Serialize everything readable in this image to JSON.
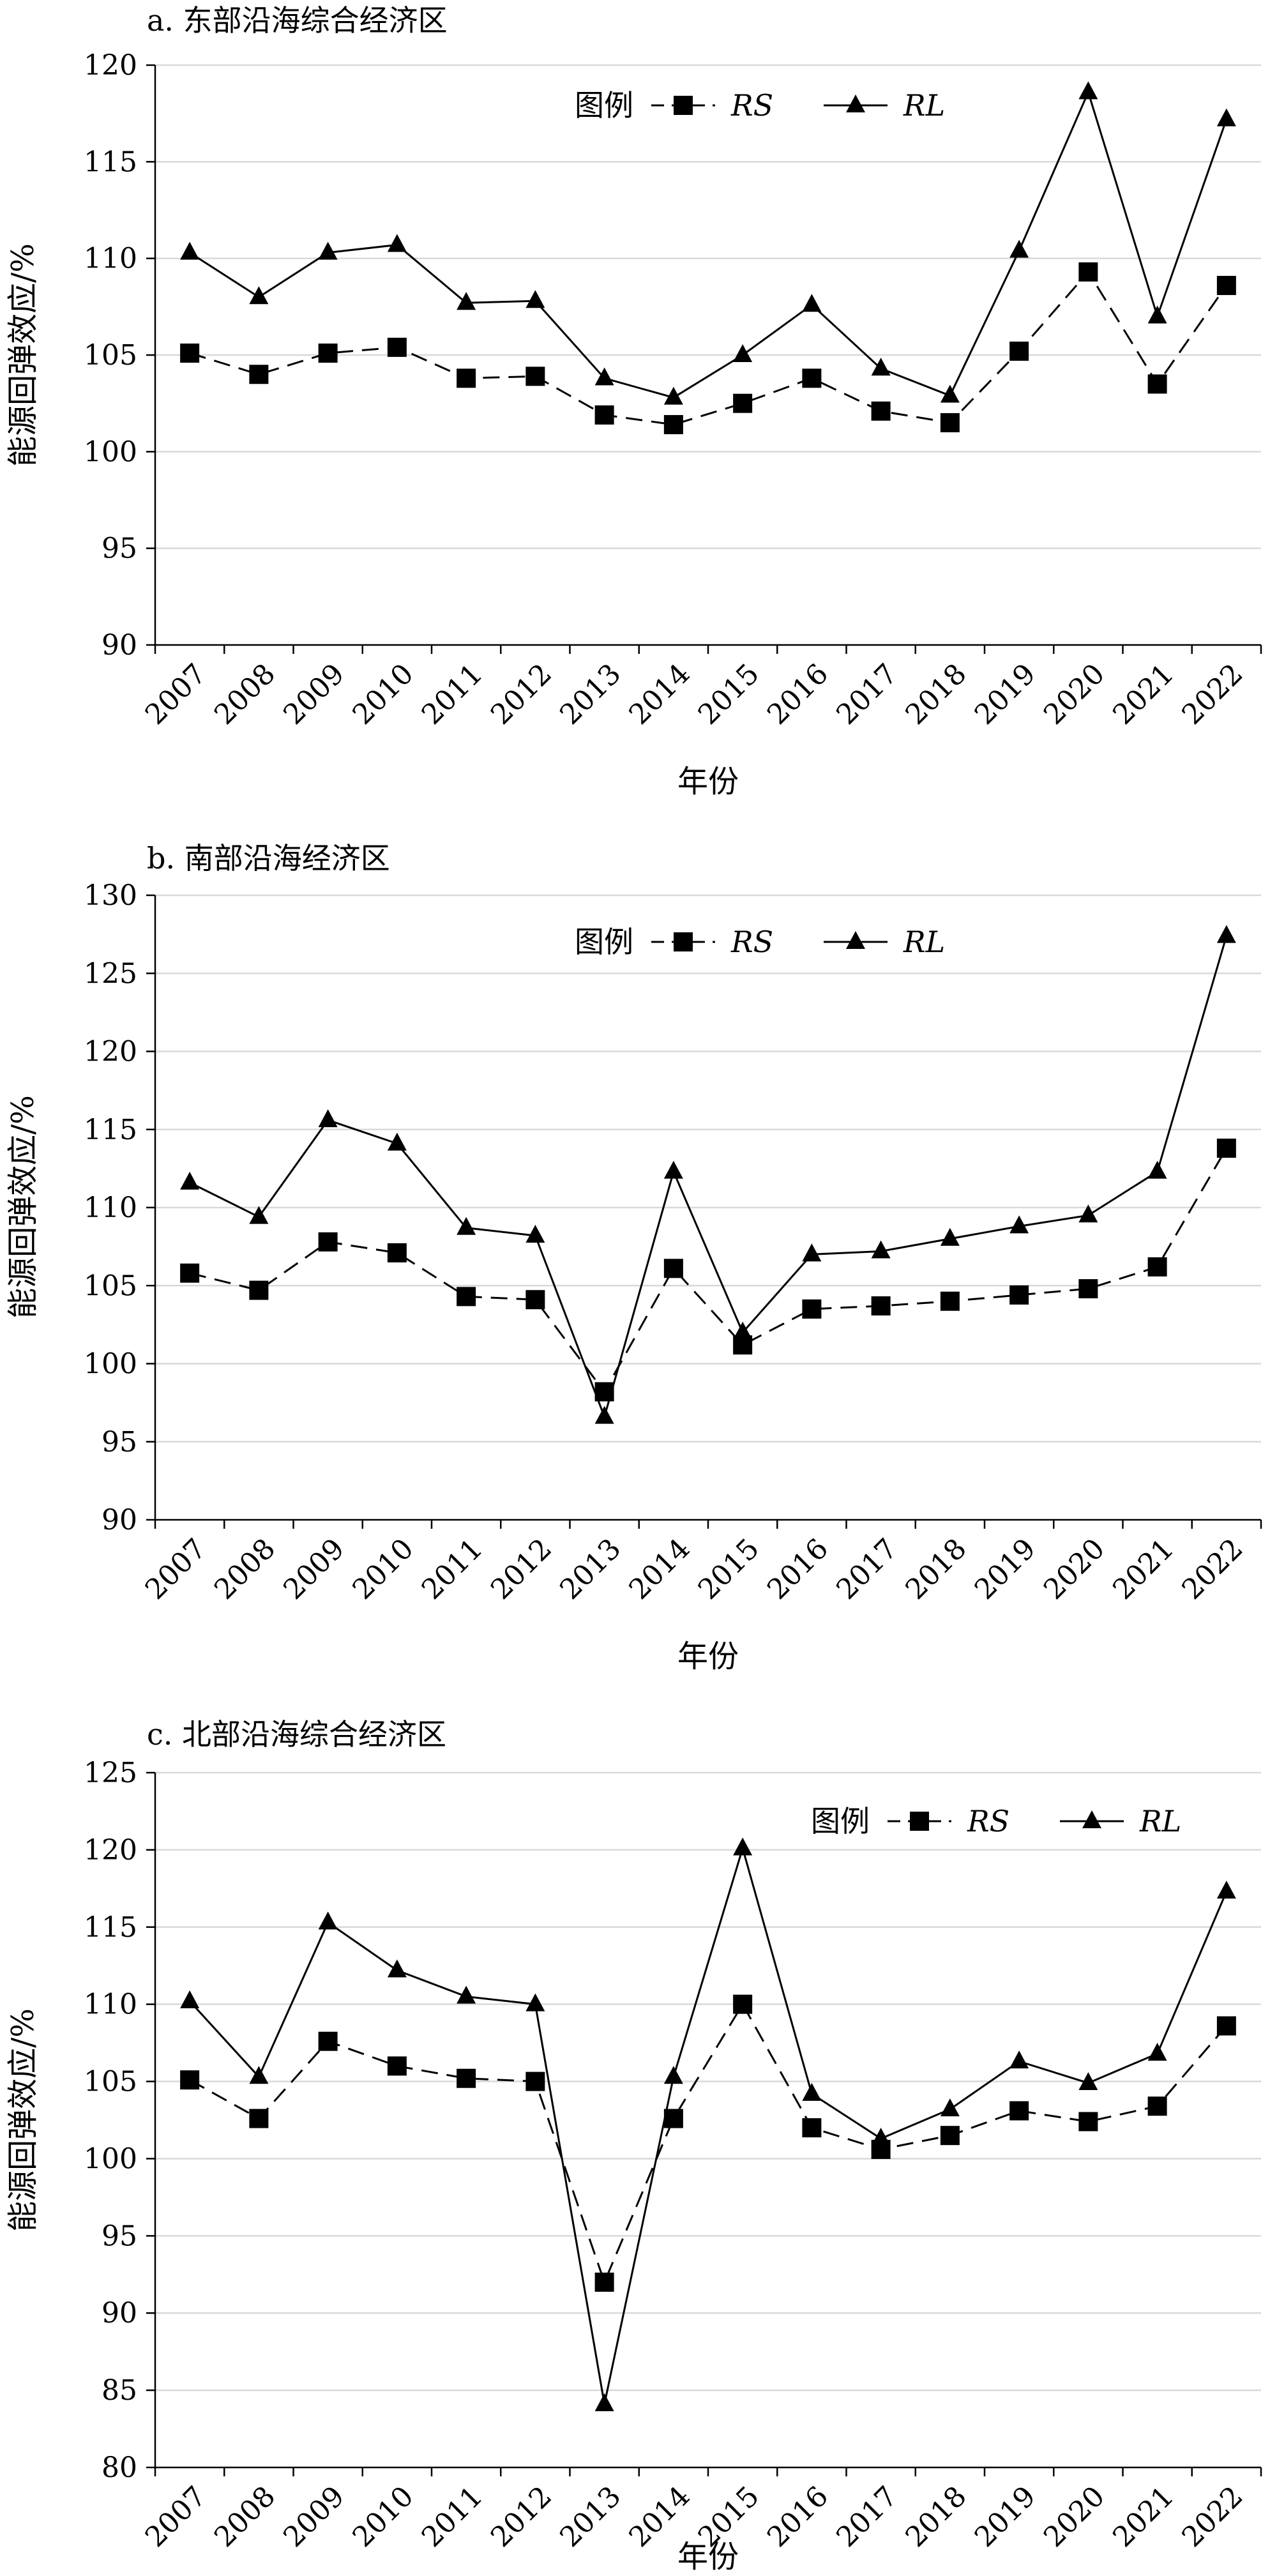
{
  "chart_data": [
    {
      "type": "line",
      "title": "a. 东部沿海综合经济区",
      "xlabel": "年份",
      "ylabel": "能源回弹效应/%",
      "ylim": [
        90,
        120
      ],
      "yticks": [
        90,
        95,
        100,
        105,
        110,
        115,
        120
      ],
      "grid": true,
      "legend_title": "图例",
      "legend_position": "top-center",
      "categories": [
        "2007",
        "2008",
        "2009",
        "2010",
        "2011",
        "2012",
        "2013",
        "2014",
        "2015",
        "2016",
        "2017",
        "2018",
        "2019",
        "2020",
        "2021",
        "2022"
      ],
      "series": [
        {
          "name": "RS",
          "marker": "square",
          "dash": true,
          "values": [
            105.1,
            104.0,
            105.1,
            105.4,
            103.8,
            103.9,
            101.9,
            101.4,
            102.5,
            103.8,
            102.1,
            101.5,
            105.2,
            109.3,
            103.5,
            108.6
          ]
        },
        {
          "name": "RL",
          "marker": "triangle",
          "dash": false,
          "values": [
            110.3,
            108.0,
            110.3,
            110.7,
            107.7,
            107.8,
            103.8,
            102.8,
            105.0,
            107.6,
            104.3,
            102.9,
            110.4,
            118.6,
            107.0,
            117.2
          ]
        }
      ]
    },
    {
      "type": "line",
      "title": "b. 南部沿海经济区",
      "xlabel": "年份",
      "ylabel": "能源回弹效应/%",
      "ylim": [
        90,
        130
      ],
      "yticks": [
        90,
        95,
        100,
        105,
        110,
        115,
        120,
        125,
        130
      ],
      "grid": true,
      "legend_title": "图例",
      "legend_position": "top-center",
      "categories": [
        "2007",
        "2008",
        "2009",
        "2010",
        "2011",
        "2012",
        "2013",
        "2014",
        "2015",
        "2016",
        "2017",
        "2018",
        "2019",
        "2020",
        "2021",
        "2022"
      ],
      "series": [
        {
          "name": "RS",
          "marker": "square",
          "dash": true,
          "values": [
            105.8,
            104.7,
            107.8,
            107.1,
            104.3,
            104.1,
            98.2,
            106.1,
            101.2,
            103.5,
            103.7,
            104.0,
            104.4,
            104.8,
            106.2,
            113.8
          ]
        },
        {
          "name": "RL",
          "marker": "triangle",
          "dash": false,
          "values": [
            111.6,
            109.4,
            115.6,
            114.1,
            108.7,
            108.2,
            96.6,
            112.3,
            102.0,
            107.0,
            107.2,
            108.0,
            108.8,
            109.5,
            112.3,
            127.4
          ]
        }
      ]
    },
    {
      "type": "line",
      "title": "c. 北部沿海综合经济区",
      "xlabel": "年份",
      "ylabel": "能源回弹效应/%",
      "ylim": [
        80,
        125
      ],
      "yticks": [
        80,
        85,
        90,
        95,
        100,
        105,
        110,
        115,
        120,
        125
      ],
      "grid": true,
      "legend_title": "图例",
      "legend_position": "top-right",
      "categories": [
        "2007",
        "2008",
        "2009",
        "2010",
        "2011",
        "2012",
        "2013",
        "2014",
        "2015",
        "2016",
        "2017",
        "2018",
        "2019",
        "2020",
        "2021",
        "2022"
      ],
      "series": [
        {
          "name": "RS",
          "marker": "square",
          "dash": true,
          "values": [
            105.1,
            102.6,
            107.6,
            106.0,
            105.2,
            105.0,
            92.0,
            102.6,
            110.0,
            102.0,
            100.6,
            101.5,
            103.1,
            102.4,
            103.4,
            108.6
          ]
        },
        {
          "name": "RL",
          "marker": "triangle",
          "dash": false,
          "values": [
            110.2,
            105.3,
            115.3,
            112.2,
            110.5,
            110.0,
            84.1,
            105.3,
            120.1,
            104.2,
            101.3,
            103.2,
            106.3,
            104.9,
            106.8,
            117.3
          ]
        }
      ]
    }
  ]
}
